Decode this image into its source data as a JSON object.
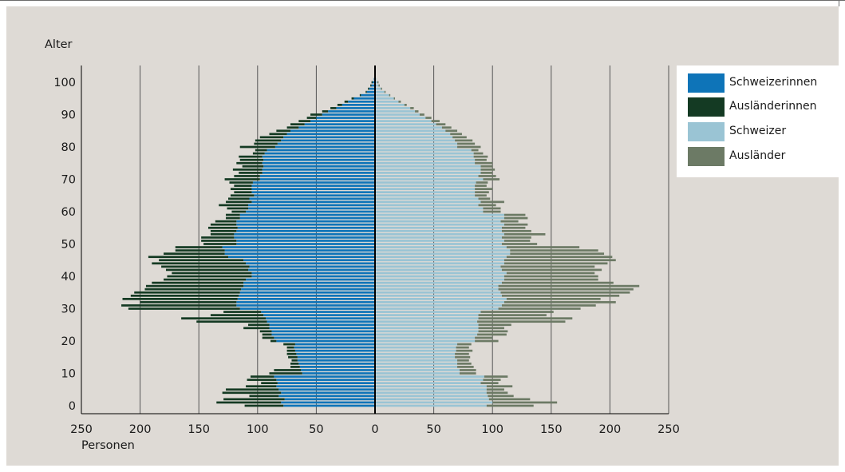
{
  "chart_data": {
    "type": "bar",
    "orientation": "horizontal-population-pyramid",
    "ylabel": "Alter",
    "xlabel": "Personen",
    "xlim": [
      -250,
      250
    ],
    "ylim": [
      0,
      102
    ],
    "x_ticks": [
      "250",
      "200",
      "150",
      "100",
      "50",
      "0",
      "50",
      "100",
      "150",
      "200",
      "250"
    ],
    "y_ticks": [
      "0",
      "10",
      "20",
      "30",
      "40",
      "50",
      "60",
      "70",
      "80",
      "90",
      "100"
    ],
    "grid": true,
    "legend_position": "top-right",
    "colors": {
      "schweizerinnen": "#0e74b8",
      "auslaenderinnen": "#143a23",
      "schweizer": "#9ac4d4",
      "auslaender": "#6c7a65",
      "grid": "#555555",
      "axis": "#000000",
      "panel": "#dedad5"
    },
    "legend": [
      {
        "key": "schweizerinnen",
        "label": "Schweizerinnen"
      },
      {
        "key": "auslaenderinnen",
        "label": "Ausländerinnen"
      },
      {
        "key": "schweizer",
        "label": "Schweizer"
      },
      {
        "key": "auslaender",
        "label": "Ausländer"
      }
    ],
    "ages": [
      0,
      1,
      2,
      3,
      4,
      5,
      6,
      7,
      8,
      9,
      10,
      11,
      12,
      13,
      14,
      15,
      16,
      17,
      18,
      19,
      20,
      21,
      22,
      23,
      24,
      25,
      26,
      27,
      28,
      29,
      30,
      31,
      32,
      33,
      34,
      35,
      36,
      37,
      38,
      39,
      40,
      41,
      42,
      43,
      44,
      45,
      46,
      47,
      48,
      49,
      50,
      51,
      52,
      53,
      54,
      55,
      56,
      57,
      58,
      59,
      60,
      61,
      62,
      63,
      64,
      65,
      66,
      67,
      68,
      69,
      70,
      71,
      72,
      73,
      74,
      75,
      76,
      77,
      78,
      79,
      80,
      81,
      82,
      83,
      84,
      85,
      86,
      87,
      88,
      89,
      90,
      91,
      92,
      93,
      94,
      95,
      96,
      97,
      98,
      99,
      100,
      101
    ],
    "series": [
      {
        "key": "schweizerinnen",
        "name": "Schweizerinnen",
        "side": "left",
        "values": [
          78,
          80,
          77,
          82,
          80,
          82,
          84,
          83,
          84,
          86,
          62,
          63,
          64,
          65,
          66,
          66,
          67,
          68,
          69,
          68,
          84,
          86,
          88,
          88,
          90,
          90,
          92,
          93,
          95,
          97,
          115,
          118,
          118,
          117,
          116,
          115,
          114,
          112,
          112,
          110,
          105,
          105,
          108,
          107,
          110,
          112,
          125,
          128,
          128,
          130,
          118,
          118,
          120,
          120,
          118,
          117,
          118,
          118,
          115,
          115,
          110,
          108,
          108,
          105,
          107,
          103,
          105,
          105,
          105,
          104,
          98,
          98,
          96,
          96,
          95,
          96,
          95,
          96,
          94,
          92,
          85,
          83,
          80,
          78,
          75,
          72,
          65,
          60,
          55,
          50,
          45,
          40,
          33,
          28,
          23,
          18,
          12,
          7,
          5,
          3,
          2,
          1
        ]
      },
      {
        "key": "auslaenderinnen",
        "name": "Ausländerinnen",
        "side": "left",
        "values": [
          33,
          55,
          52,
          25,
          50,
          45,
          26,
          14,
          25,
          20,
          28,
          23,
          8,
          7,
          5,
          8,
          8,
          7,
          6,
          10,
          5,
          10,
          8,
          10,
          22,
          18,
          60,
          72,
          45,
          32,
          95,
          98,
          82,
          98,
          92,
          90,
          82,
          83,
          78,
          70,
          72,
          68,
          70,
          75,
          80,
          72,
          68,
          52,
          42,
          40,
          28,
          30,
          28,
          20,
          22,
          25,
          22,
          18,
          12,
          12,
          12,
          18,
          25,
          22,
          18,
          20,
          15,
          18,
          15,
          20,
          30,
          22,
          20,
          25,
          18,
          22,
          20,
          20,
          10,
          10,
          30,
          20,
          22,
          20,
          15,
          12,
          10,
          12,
          10,
          8,
          10,
          5,
          5,
          4,
          3,
          2,
          1,
          1,
          1,
          1,
          1,
          0
        ]
      },
      {
        "key": "schweizer",
        "name": "Schweizer",
        "side": "right",
        "values": [
          95,
          100,
          97,
          96,
          95,
          95,
          95,
          90,
          92,
          93,
          72,
          72,
          70,
          70,
          70,
          68,
          68,
          69,
          69,
          70,
          85,
          85,
          87,
          88,
          88,
          88,
          87,
          88,
          88,
          90,
          105,
          108,
          110,
          112,
          108,
          107,
          105,
          105,
          108,
          110,
          110,
          112,
          108,
          107,
          110,
          110,
          112,
          115,
          115,
          112,
          108,
          110,
          108,
          110,
          108,
          108,
          110,
          107,
          110,
          110,
          92,
          92,
          88,
          90,
          88,
          85,
          85,
          85,
          85,
          86,
          92,
          88,
          90,
          90,
          90,
          85,
          85,
          84,
          84,
          82,
          70,
          70,
          68,
          66,
          64,
          60,
          57,
          52,
          48,
          43,
          38,
          34,
          30,
          25,
          20,
          16,
          12,
          8,
          5,
          3,
          2,
          1
        ]
      },
      {
        "key": "auslaender",
        "name": "Ausländer",
        "side": "right",
        "values": [
          40,
          55,
          35,
          22,
          18,
          15,
          22,
          15,
          15,
          20,
          14,
          14,
          14,
          12,
          10,
          13,
          12,
          14,
          11,
          12,
          20,
          15,
          25,
          25,
          22,
          28,
          75,
          80,
          58,
          62,
          70,
          80,
          95,
          80,
          100,
          110,
          115,
          120,
          95,
          80,
          80,
          75,
          85,
          80,
          88,
          95,
          90,
          80,
          75,
          62,
          30,
          22,
          25,
          35,
          25,
          20,
          20,
          15,
          20,
          18,
          15,
          15,
          15,
          20,
          10,
          10,
          12,
          15,
          10,
          10,
          14,
          15,
          10,
          12,
          10,
          15,
          10,
          12,
          8,
          6,
          20,
          15,
          15,
          12,
          10,
          10,
          8,
          8,
          7,
          5,
          4,
          3,
          3,
          2,
          2,
          1,
          1,
          1,
          1,
          1,
          1,
          0
        ]
      }
    ]
  }
}
